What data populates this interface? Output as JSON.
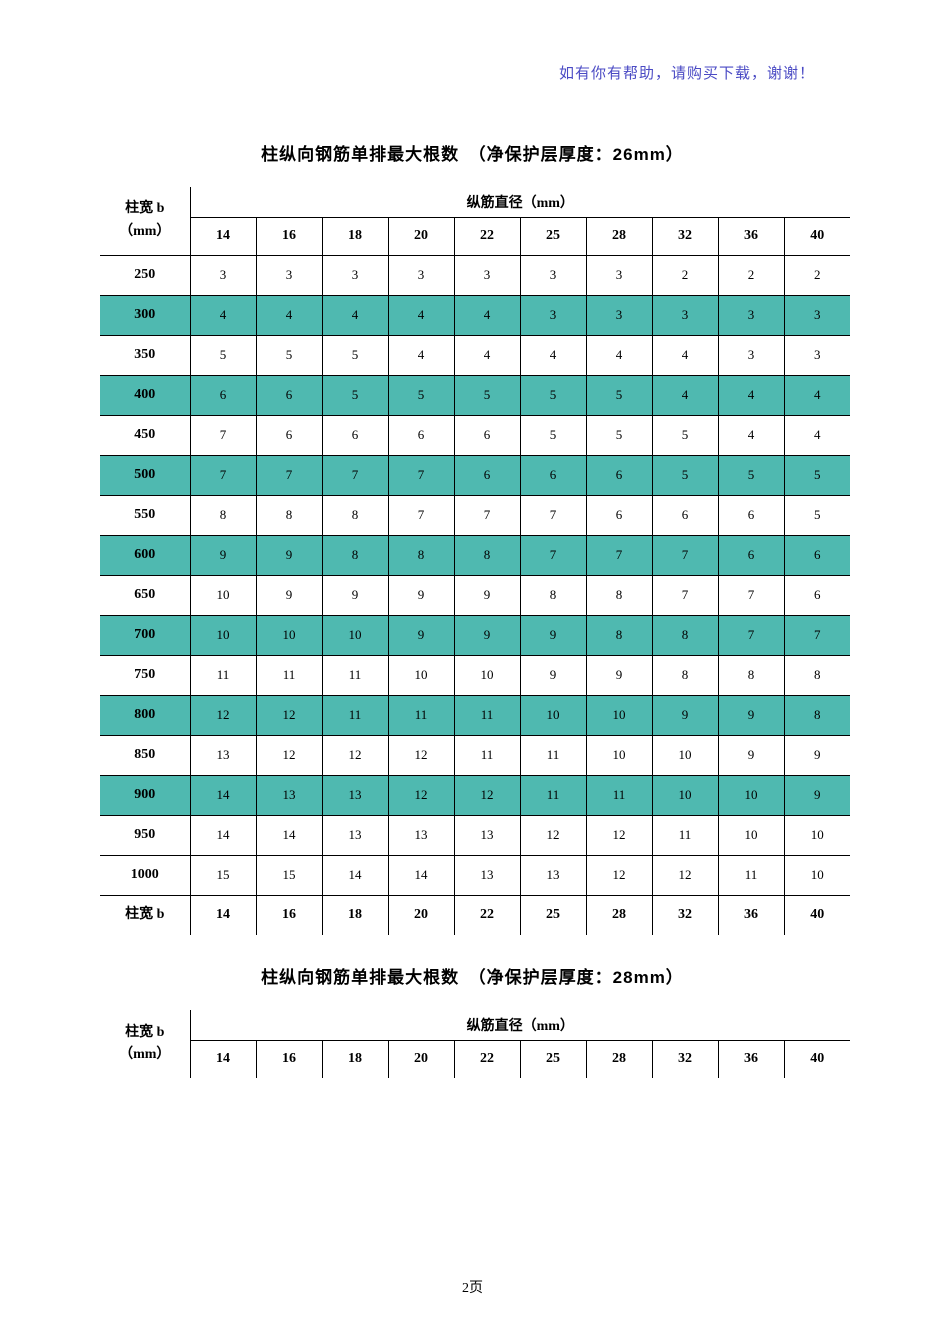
{
  "header_note": "如有你有帮助，请购买下载，谢谢！",
  "page_number": "2页",
  "table1": {
    "title": "柱纵向钢筋单排最大根数　（净保护层厚度：26mm）",
    "row_header_label_line1": "柱宽 b",
    "row_header_label_line2": "（mm）",
    "col_group_header": "纵筋直径（mm）",
    "columns": [
      "14",
      "16",
      "18",
      "20",
      "22",
      "25",
      "28",
      "32",
      "36",
      "40"
    ],
    "row_labels": [
      "250",
      "300",
      "350",
      "400",
      "450",
      "500",
      "550",
      "600",
      "650",
      "700",
      "750",
      "800",
      "850",
      "900",
      "950",
      "1000"
    ],
    "rows": [
      [
        "3",
        "3",
        "3",
        "3",
        "3",
        "3",
        "3",
        "2",
        "2",
        "2"
      ],
      [
        "4",
        "4",
        "4",
        "4",
        "4",
        "3",
        "3",
        "3",
        "3",
        "3"
      ],
      [
        "5",
        "5",
        "5",
        "4",
        "4",
        "4",
        "4",
        "4",
        "3",
        "3"
      ],
      [
        "6",
        "6",
        "5",
        "5",
        "5",
        "5",
        "5",
        "4",
        "4",
        "4"
      ],
      [
        "7",
        "6",
        "6",
        "6",
        "6",
        "5",
        "5",
        "5",
        "4",
        "4"
      ],
      [
        "7",
        "7",
        "7",
        "7",
        "6",
        "6",
        "6",
        "5",
        "5",
        "5"
      ],
      [
        "8",
        "8",
        "8",
        "7",
        "7",
        "7",
        "6",
        "6",
        "6",
        "5"
      ],
      [
        "9",
        "9",
        "8",
        "8",
        "8",
        "7",
        "7",
        "7",
        "6",
        "6"
      ],
      [
        "10",
        "9",
        "9",
        "9",
        "9",
        "8",
        "8",
        "7",
        "7",
        "6"
      ],
      [
        "10",
        "10",
        "10",
        "9",
        "9",
        "9",
        "8",
        "8",
        "7",
        "7"
      ],
      [
        "11",
        "11",
        "11",
        "10",
        "10",
        "9",
        "9",
        "8",
        "8",
        "8"
      ],
      [
        "12",
        "12",
        "11",
        "11",
        "11",
        "10",
        "10",
        "9",
        "9",
        "8"
      ],
      [
        "13",
        "12",
        "12",
        "12",
        "11",
        "11",
        "10",
        "10",
        "9",
        "9"
      ],
      [
        "14",
        "13",
        "13",
        "12",
        "12",
        "11",
        "11",
        "10",
        "10",
        "9"
      ],
      [
        "14",
        "14",
        "13",
        "13",
        "13",
        "12",
        "12",
        "11",
        "10",
        "10"
      ],
      [
        "15",
        "15",
        "14",
        "14",
        "13",
        "13",
        "12",
        "12",
        "11",
        "10"
      ]
    ],
    "footer_row_label": "柱宽 b",
    "footer_columns": [
      "14",
      "16",
      "18",
      "20",
      "22",
      "25",
      "28",
      "32",
      "36",
      "40"
    ],
    "shaded_row_indices": [
      1,
      3,
      5,
      7,
      9,
      11,
      13
    ],
    "shade_color": "#4fb9b0",
    "border_color": "#000000",
    "background_color": "#ffffff"
  },
  "table2": {
    "title": "柱纵向钢筋单排最大根数　（净保护层厚度：28mm）",
    "row_header_label_line1": "柱宽 b",
    "row_header_label_line2": "（mm）",
    "col_group_header": "纵筋直径（mm）",
    "columns": [
      "14",
      "16",
      "18",
      "20",
      "22",
      "25",
      "28",
      "32",
      "36",
      "40"
    ]
  }
}
